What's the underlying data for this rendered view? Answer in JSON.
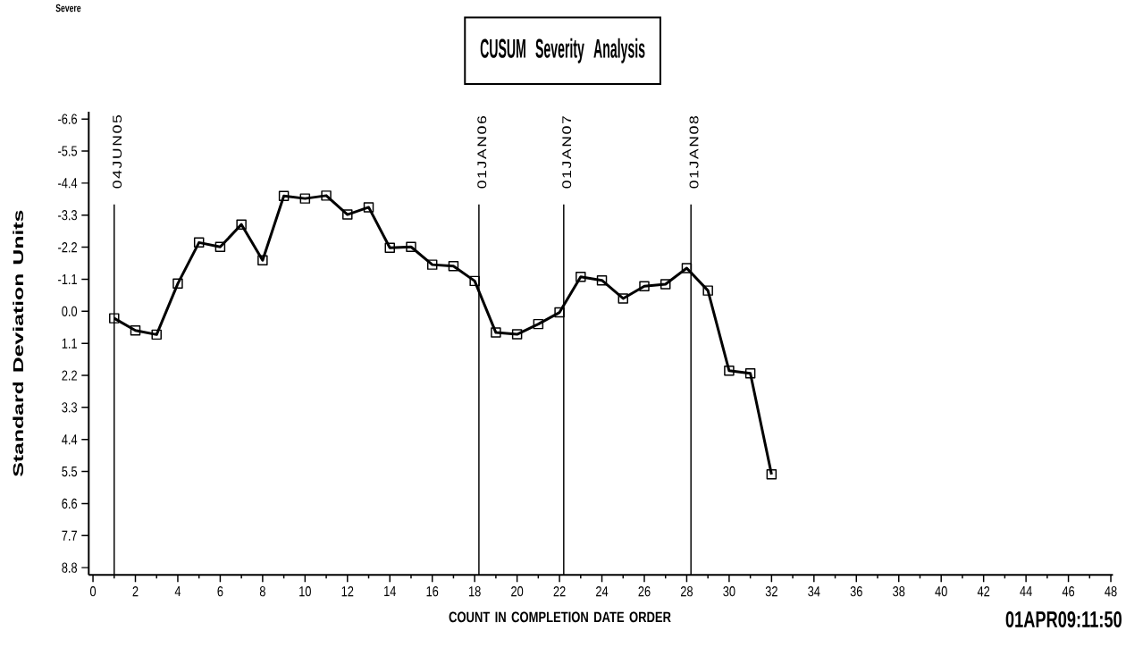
{
  "chart_data": {
    "type": "line",
    "title": "CUSUM Severity Analysis",
    "xlabel": "COUNT IN COMPLETION DATE ORDER",
    "ylabel": "Standard Deviation Units",
    "annotations": [
      "Severe",
      "01APR09:11:50"
    ],
    "x": [
      1,
      2,
      3,
      4,
      5,
      6,
      7,
      8,
      9,
      10,
      11,
      12,
      13,
      14,
      15,
      16,
      17,
      18,
      19,
      20,
      21,
      22,
      23,
      24,
      25,
      26,
      27,
      28,
      29,
      30,
      31,
      32
    ],
    "series": [
      {
        "color": "#000000",
        "values": [
          0.24,
          0.66,
          0.8,
          -0.95,
          -2.36,
          -2.21,
          -2.98,
          -1.75,
          -3.96,
          -3.87,
          -3.97,
          -3.32,
          -3.57,
          -2.18,
          -2.21,
          -1.6,
          -1.55,
          -1.04,
          0.73,
          0.79,
          0.44,
          0.04,
          -1.18,
          -1.06,
          -0.44,
          -0.86,
          -0.93,
          -1.48,
          -0.71,
          2.04,
          2.13,
          5.6
        ]
      }
    ],
    "xlim": [
      -0.2,
      48.1
    ],
    "ylim": [
      9.05,
      -6.85
    ],
    "xticks": [
      0,
      {
        "value": 1,
        "label": null
      },
      2,
      {
        "value": 3,
        "label": null
      },
      4,
      {
        "value": 5,
        "label": null
      },
      6,
      {
        "value": 7,
        "label": null
      },
      8,
      {
        "value": 9,
        "label": null
      },
      10,
      {
        "value": 11,
        "label": null
      },
      12,
      {
        "value": 13,
        "label": null
      },
      14,
      {
        "value": 15,
        "label": null
      },
      16,
      {
        "value": 17,
        "label": null
      },
      18,
      {
        "value": 19,
        "label": null
      },
      20,
      {
        "value": 21,
        "label": null
      },
      22,
      {
        "value": 23,
        "label": null
      },
      24,
      {
        "value": 25,
        "label": null
      },
      26,
      {
        "value": 27,
        "label": null
      },
      28,
      {
        "value": 29,
        "label": null
      },
      30,
      {
        "value": 31,
        "label": null
      },
      32,
      {
        "value": 33,
        "label": null
      },
      34,
      {
        "value": 35,
        "label": null
      },
      36,
      {
        "value": 37,
        "label": null
      },
      38,
      {
        "value": 39,
        "label": null
      },
      40,
      {
        "value": 41,
        "label": null
      },
      42,
      {
        "value": 43,
        "label": null
      },
      44,
      {
        "value": 45,
        "label": null
      },
      46,
      {
        "value": 47,
        "label": null
      },
      48
    ],
    "yticks": [
      -6.6,
      -5.5,
      -4.4,
      -3.3,
      -2.2,
      -1.1,
      {
        "value": 0,
        "label": "0.0"
      },
      1.1,
      2.2,
      3.3,
      4.4,
      5.5,
      6.6,
      7.7,
      8.8
    ],
    "ref_lines": [
      {
        "axis": "x",
        "value": 1,
        "label": "04JUN05",
        "color": "#000000"
      },
      {
        "axis": "x",
        "value": 18.2,
        "label": "01JAN06",
        "color": "#000000"
      },
      {
        "axis": "x",
        "value": 22.2,
        "label": "01JAN07",
        "color": "#000000"
      },
      {
        "axis": "x",
        "value": 28.2,
        "label": "01JAN08",
        "color": "#000000"
      }
    ],
    "marker": "square",
    "line_style": "solid"
  }
}
